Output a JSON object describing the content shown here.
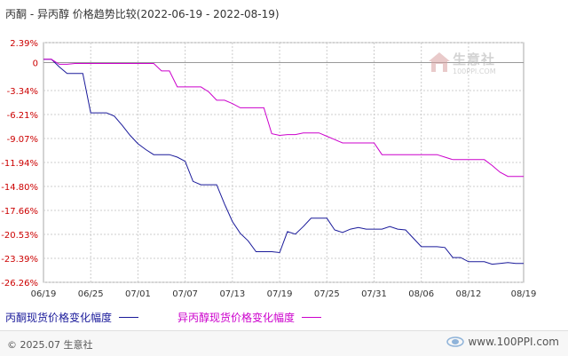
{
  "chart_data": {
    "type": "line",
    "title": "丙酮 - 异丙醇 价格趋势比较(2022-06-19 - 2022-08-19)",
    "x_labels": [
      "06/19",
      "06/25",
      "07/01",
      "07/07",
      "07/13",
      "07/19",
      "07/25",
      "07/31",
      "08/06",
      "08/12",
      "08/19"
    ],
    "x_range": [
      "2022-06-19",
      "2022-08-19"
    ],
    "y_ticks": [
      "2.39%",
      "0",
      "-3.34%",
      "-6.21%",
      "-9.07%",
      "-11.94%",
      "-14.80%",
      "-17.66%",
      "-20.53%",
      "-23.39%",
      "-26.26%"
    ],
    "y_tick_values": [
      2.39,
      0,
      -3.34,
      -6.21,
      -9.07,
      -11.94,
      -14.8,
      -17.66,
      -20.53,
      -23.39,
      -26.26
    ],
    "ylim": [
      -26.26,
      2.39
    ],
    "grid": true,
    "legend_position": "bottom",
    "series": [
      {
        "name": "丙酮现货价格变化幅度",
        "color": "#1a1a9a",
        "points": [
          [
            "2022-06-19",
            0.4
          ],
          [
            "2022-06-20",
            0.4
          ],
          [
            "2022-06-21",
            -0.5
          ],
          [
            "2022-06-22",
            -1.3
          ],
          [
            "2022-06-23",
            -1.3
          ],
          [
            "2022-06-24",
            -1.3
          ],
          [
            "2022-06-25",
            -6.0
          ],
          [
            "2022-06-26",
            -6.0
          ],
          [
            "2022-06-27",
            -6.0
          ],
          [
            "2022-06-28",
            -6.4
          ],
          [
            "2022-06-29",
            -7.5
          ],
          [
            "2022-06-30",
            -8.7
          ],
          [
            "2022-07-01",
            -9.7
          ],
          [
            "2022-07-02",
            -10.4
          ],
          [
            "2022-07-03",
            -11.0
          ],
          [
            "2022-07-04",
            -11.0
          ],
          [
            "2022-07-05",
            -11.0
          ],
          [
            "2022-07-06",
            -11.3
          ],
          [
            "2022-07-07",
            -11.8
          ],
          [
            "2022-07-08",
            -14.2
          ],
          [
            "2022-07-09",
            -14.6
          ],
          [
            "2022-07-10",
            -14.6
          ],
          [
            "2022-07-11",
            -14.6
          ],
          [
            "2022-07-12",
            -16.9
          ],
          [
            "2022-07-13",
            -19.0
          ],
          [
            "2022-07-14",
            -20.4
          ],
          [
            "2022-07-15",
            -21.3
          ],
          [
            "2022-07-16",
            -22.6
          ],
          [
            "2022-07-17",
            -22.6
          ],
          [
            "2022-07-18",
            -22.6
          ],
          [
            "2022-07-19",
            -22.7
          ],
          [
            "2022-07-20",
            -20.2
          ],
          [
            "2022-07-21",
            -20.5
          ],
          [
            "2022-07-22",
            -19.6
          ],
          [
            "2022-07-23",
            -18.6
          ],
          [
            "2022-07-24",
            -18.6
          ],
          [
            "2022-07-25",
            -18.6
          ],
          [
            "2022-07-26",
            -20.0
          ],
          [
            "2022-07-27",
            -20.3
          ],
          [
            "2022-07-28",
            -19.9
          ],
          [
            "2022-07-29",
            -19.7
          ],
          [
            "2022-07-30",
            -19.9
          ],
          [
            "2022-07-31",
            -19.9
          ],
          [
            "2022-08-01",
            -19.9
          ],
          [
            "2022-08-02",
            -19.6
          ],
          [
            "2022-08-03",
            -19.9
          ],
          [
            "2022-08-04",
            -20.0
          ],
          [
            "2022-08-05",
            -21.0
          ],
          [
            "2022-08-06",
            -22.0
          ],
          [
            "2022-08-07",
            -22.0
          ],
          [
            "2022-08-08",
            -22.0
          ],
          [
            "2022-08-09",
            -22.1
          ],
          [
            "2022-08-10",
            -23.3
          ],
          [
            "2022-08-11",
            -23.3
          ],
          [
            "2022-08-12",
            -23.8
          ],
          [
            "2022-08-13",
            -23.8
          ],
          [
            "2022-08-14",
            -23.8
          ],
          [
            "2022-08-15",
            -24.1
          ],
          [
            "2022-08-16",
            -24.0
          ],
          [
            "2022-08-17",
            -23.9
          ],
          [
            "2022-08-18",
            -24.0
          ],
          [
            "2022-08-19",
            -24.0
          ]
        ]
      },
      {
        "name": "异丙醇现货价格变化幅度",
        "color": "#cc00cc",
        "points": [
          [
            "2022-06-19",
            0.4
          ],
          [
            "2022-06-20",
            0.4
          ],
          [
            "2022-06-21",
            -0.2
          ],
          [
            "2022-06-22",
            -0.2
          ],
          [
            "2022-06-23",
            -0.1
          ],
          [
            "2022-06-24",
            -0.1
          ],
          [
            "2022-06-25",
            -0.1
          ],
          [
            "2022-06-26",
            -0.1
          ],
          [
            "2022-06-27",
            -0.1
          ],
          [
            "2022-06-28",
            -0.1
          ],
          [
            "2022-06-29",
            -0.1
          ],
          [
            "2022-06-30",
            -0.1
          ],
          [
            "2022-07-01",
            -0.1
          ],
          [
            "2022-07-02",
            -0.1
          ],
          [
            "2022-07-03",
            -0.1
          ],
          [
            "2022-07-04",
            -1.0
          ],
          [
            "2022-07-05",
            -1.0
          ],
          [
            "2022-07-06",
            -2.9
          ],
          [
            "2022-07-07",
            -2.9
          ],
          [
            "2022-07-08",
            -2.9
          ],
          [
            "2022-07-09",
            -2.9
          ],
          [
            "2022-07-10",
            -3.5
          ],
          [
            "2022-07-11",
            -4.5
          ],
          [
            "2022-07-12",
            -4.5
          ],
          [
            "2022-07-13",
            -4.9
          ],
          [
            "2022-07-14",
            -5.4
          ],
          [
            "2022-07-15",
            -5.4
          ],
          [
            "2022-07-16",
            -5.4
          ],
          [
            "2022-07-17",
            -5.4
          ],
          [
            "2022-07-18",
            -8.5
          ],
          [
            "2022-07-19",
            -8.7
          ],
          [
            "2022-07-20",
            -8.6
          ],
          [
            "2022-07-21",
            -8.6
          ],
          [
            "2022-07-22",
            -8.4
          ],
          [
            "2022-07-23",
            -8.4
          ],
          [
            "2022-07-24",
            -8.4
          ],
          [
            "2022-07-25",
            -8.8
          ],
          [
            "2022-07-26",
            -9.2
          ],
          [
            "2022-07-27",
            -9.6
          ],
          [
            "2022-07-28",
            -9.6
          ],
          [
            "2022-07-29",
            -9.6
          ],
          [
            "2022-07-30",
            -9.6
          ],
          [
            "2022-07-31",
            -9.6
          ],
          [
            "2022-08-01",
            -11.0
          ],
          [
            "2022-08-02",
            -11.0
          ],
          [
            "2022-08-03",
            -11.0
          ],
          [
            "2022-08-04",
            -11.0
          ],
          [
            "2022-08-05",
            -11.0
          ],
          [
            "2022-08-06",
            -11.0
          ],
          [
            "2022-08-07",
            -11.0
          ],
          [
            "2022-08-08",
            -11.0
          ],
          [
            "2022-08-09",
            -11.3
          ],
          [
            "2022-08-10",
            -11.6
          ],
          [
            "2022-08-11",
            -11.6
          ],
          [
            "2022-08-12",
            -11.6
          ],
          [
            "2022-08-13",
            -11.6
          ],
          [
            "2022-08-14",
            -11.6
          ],
          [
            "2022-08-15",
            -12.3
          ],
          [
            "2022-08-16",
            -13.1
          ],
          [
            "2022-08-17",
            -13.6
          ],
          [
            "2022-08-18",
            -13.6
          ],
          [
            "2022-08-19",
            -13.6
          ]
        ]
      }
    ]
  },
  "watermark": {
    "text": "生意社",
    "url": "100PPI.COM"
  },
  "footer": {
    "copyright": "© 2025.07 生意社",
    "site": "www.100PPI.com"
  }
}
